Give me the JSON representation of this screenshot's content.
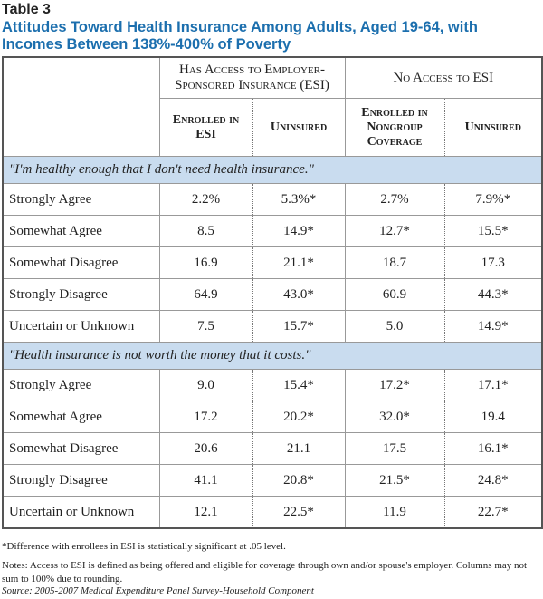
{
  "header": {
    "label": "Table 3",
    "title": "Attitudes Toward Health Insurance Among Adults, Aged 19-64, with Incomes Between 138%-400% of Poverty"
  },
  "table": {
    "groups": [
      "Has Access to Employer-Sponsored Insurance (ESI)",
      "No Access to ESI"
    ],
    "columns": [
      "Enrolled in ESI",
      "Uninsured",
      "Enrolled in Nongroup Coverage",
      "Uninsured"
    ],
    "sections": [
      {
        "title": "\"I'm healthy enough that I don't need health insurance.\"",
        "rows": [
          [
            "Strongly Agree",
            "2.2%",
            "5.3%*",
            "2.7%",
            "7.9%*"
          ],
          [
            "Somewhat Agree",
            "8.5",
            "14.9*",
            "12.7*",
            "15.5*"
          ],
          [
            "Somewhat Disagree",
            "16.9",
            "21.1*",
            "18.7",
            "17.3"
          ],
          [
            "Strongly Disagree",
            "64.9",
            "43.0*",
            "60.9",
            "44.3*"
          ],
          [
            "Uncertain or Unknown",
            "7.5",
            "15.7*",
            "5.0",
            "14.9*"
          ]
        ]
      },
      {
        "title": "\"Health insurance is not worth the money that it costs.\"",
        "rows": [
          [
            "Strongly Agree",
            "9.0",
            "15.4*",
            "17.2*",
            "17.1*"
          ],
          [
            "Somewhat Agree",
            "17.2",
            "20.2*",
            "32.0*",
            "19.4"
          ],
          [
            "Somewhat Disagree",
            "20.6",
            "21.1",
            "17.5",
            "16.1*"
          ],
          [
            "Strongly Disagree",
            "41.1",
            "20.8*",
            "21.5*",
            "24.8*"
          ],
          [
            "Uncertain or Unknown",
            "12.1",
            "22.5*",
            "11.9",
            "22.7*"
          ]
        ]
      }
    ]
  },
  "footnotes": [
    "*Difference with enrollees in ESI is statistically significant at .05 level.",
    "Notes: Access to ESI is defined as being offered and eligible for coverage through own and/or spouse's employer. Columns may not sum to 100% due to rounding.",
    "Source: 2005-2007 Medical Expenditure Panel Survey-Household Component"
  ]
}
